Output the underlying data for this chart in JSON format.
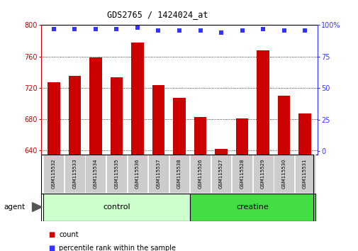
{
  "title": "GDS2765 / 1424024_at",
  "categories": [
    "GSM115532",
    "GSM115533",
    "GSM115534",
    "GSM115535",
    "GSM115536",
    "GSM115537",
    "GSM115538",
    "GSM115526",
    "GSM115527",
    "GSM115528",
    "GSM115529",
    "GSM115530",
    "GSM115531"
  ],
  "counts": [
    727,
    735,
    759,
    733,
    778,
    723,
    707,
    683,
    642,
    681,
    768,
    710,
    687
  ],
  "percentiles": [
    97,
    97,
    97,
    97,
    98,
    96,
    96,
    96,
    94,
    96,
    97,
    96,
    96
  ],
  "groups": [
    {
      "label": "control",
      "start": 0,
      "end": 7,
      "color": "#ccffcc",
      "edge_color": "#339933"
    },
    {
      "label": "creatine",
      "start": 7,
      "end": 13,
      "color": "#44dd44",
      "edge_color": "#228822"
    }
  ],
  "bar_color": "#cc0000",
  "dot_color": "#3333ff",
  "ylim_left": [
    635,
    800
  ],
  "ylim_right": [
    -2.5,
    100
  ],
  "yticks_left": [
    640,
    680,
    720,
    760,
    800
  ],
  "yticks_right": [
    0,
    25,
    50,
    75,
    100
  ],
  "ytick_right_labels": [
    "0",
    "25",
    "50",
    "75",
    "100%"
  ],
  "agent_label": "agent",
  "legend_count_label": "count",
  "legend_percentile_label": "percentile rank within the sample",
  "box_color": "#cccccc",
  "box_edge": "#888888"
}
